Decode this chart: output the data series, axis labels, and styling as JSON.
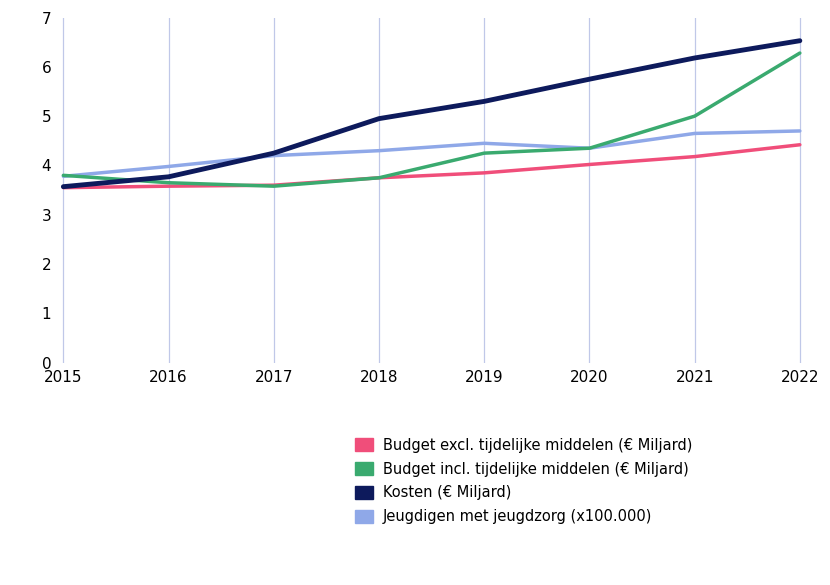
{
  "years": [
    2015,
    2016,
    2017,
    2018,
    2019,
    2020,
    2021,
    2022
  ],
  "budget_excl": [
    3.55,
    3.58,
    3.6,
    3.75,
    3.85,
    4.02,
    4.18,
    4.42
  ],
  "budget_incl": [
    3.8,
    3.65,
    3.58,
    3.75,
    4.25,
    4.35,
    5.0,
    6.28
  ],
  "kosten": [
    3.57,
    3.77,
    4.25,
    4.95,
    5.3,
    5.75,
    6.18,
    6.53
  ],
  "jeugdigen": [
    3.78,
    3.98,
    4.2,
    4.3,
    4.45,
    4.35,
    4.65,
    4.7
  ],
  "colors": {
    "budget_excl": "#f04e7a",
    "budget_incl": "#3aaa6f",
    "kosten": "#0d1a5c",
    "jeugdigen": "#8fa8e8"
  },
  "legend_labels": [
    "Budget excl. tijdelijke middelen (€ Miljard)",
    "Budget incl. tijdelijke middelen (€ Miljard)",
    "Kosten (€ Miljard)",
    "Jeugdigen met jeugdzorg (x100.000)"
  ],
  "ylim": [
    0,
    7
  ],
  "yticks": [
    0,
    1,
    2,
    3,
    4,
    5,
    6,
    7
  ],
  "xlim": [
    2015,
    2022
  ],
  "linewidth": 2.5,
  "kosten_linewidth": 3.5,
  "background_color": "#ffffff",
  "grid_color": "#c0c8e8",
  "grid_linewidth": 0.9
}
